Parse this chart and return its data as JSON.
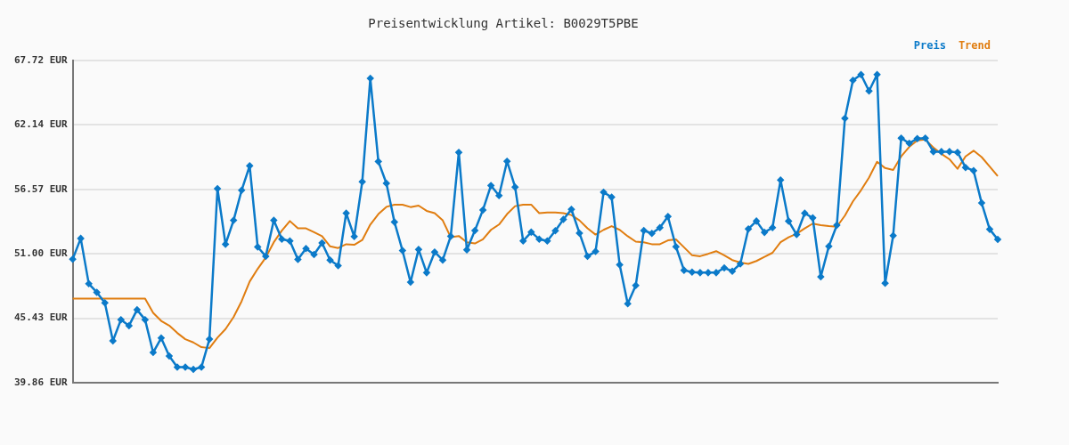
{
  "chart_data": {
    "type": "line",
    "title": "Preisentwicklung Artikel: B0029T5PBE",
    "categories": [
      null,
      null,
      null,
      null,
      null,
      null,
      null,
      null,
      null,
      null,
      null,
      null,
      null,
      null,
      null,
      null,
      null,
      null,
      null,
      null,
      null,
      null,
      null,
      null,
      null,
      null,
      null,
      null,
      null,
      null,
      null,
      null,
      null,
      null,
      null,
      null,
      null,
      null,
      null,
      null,
      null,
      null,
      null,
      null,
      null,
      null,
      null,
      null,
      null,
      null,
      null,
      null,
      null,
      null,
      null,
      null,
      null,
      null,
      null,
      null,
      null,
      null,
      null,
      null,
      null,
      null,
      null,
      null,
      null,
      null,
      null,
      null,
      null,
      null,
      null,
      null,
      null,
      null,
      null,
      null,
      null,
      null,
      null,
      null,
      null,
      null,
      null,
      null,
      null,
      null,
      null,
      null,
      null,
      null,
      null,
      null,
      null,
      null,
      null,
      null,
      null,
      null,
      null,
      null,
      null,
      null,
      null,
      null,
      null,
      null,
      null,
      null,
      null,
      null,
      null,
      null
    ],
    "series": [
      {
        "name": "Preis",
        "color": "#0b7ac9",
        "marker": "diamond",
        "values": [
          50.54,
          52.33,
          48.41,
          47.67,
          46.76,
          43.48,
          45.31,
          44.79,
          46.16,
          45.31,
          42.47,
          43.72,
          42.16,
          41.2,
          41.2,
          41.01,
          41.2,
          43.62,
          56.63,
          51.83,
          53.89,
          56.49,
          58.6,
          51.59,
          50.79,
          53.89,
          52.27,
          52.11,
          50.52,
          51.45,
          50.93,
          51.94,
          50.46,
          49.97,
          54.51,
          52.49,
          57.23,
          66.16,
          58.98,
          57.09,
          53.75,
          51.28,
          48.55,
          51.37,
          49.37,
          51.15,
          50.46,
          52.52,
          59.77,
          51.34,
          53.01,
          54.79,
          56.9,
          56.03,
          59.0,
          56.77,
          52.11,
          52.87,
          52.27,
          52.11,
          52.99,
          53.97,
          54.84,
          52.79,
          50.79,
          51.2,
          56.32,
          55.89,
          50.06,
          46.68,
          48.27,
          53.01,
          52.76,
          53.26,
          54.22,
          51.61,
          49.58,
          49.42,
          49.37,
          49.37,
          49.37,
          49.78,
          49.5,
          50.13,
          53.15,
          53.83,
          52.85,
          53.26,
          57.37,
          53.83,
          52.66,
          54.51,
          54.1,
          49.01,
          51.64,
          53.48,
          62.71,
          65.99,
          66.49,
          65.07,
          66.49,
          48.46,
          52.57,
          61.0,
          60.55,
          60.96,
          61.0,
          59.83,
          59.83,
          59.83,
          59.77,
          58.46,
          58.19,
          55.39,
          53.12,
          52.25
        ]
      },
      {
        "name": "Trend",
        "color": "#e07d10",
        "marker": "none",
        "values": [
          47.12,
          47.12,
          47.12,
          47.12,
          47.12,
          47.12,
          47.12,
          47.12,
          47.12,
          47.12,
          45.9,
          45.2,
          44.8,
          44.16,
          43.62,
          43.34,
          42.93,
          42.85,
          43.75,
          44.49,
          45.53,
          46.9,
          48.6,
          49.7,
          50.68,
          52.0,
          53.0,
          53.83,
          53.2,
          53.2,
          52.87,
          52.52,
          51.64,
          51.5,
          51.83,
          51.78,
          52.19,
          53.53,
          54.43,
          55.06,
          55.25,
          55.25,
          55.04,
          55.17,
          54.71,
          54.51,
          53.89,
          52.43,
          52.54,
          52.0,
          51.89,
          52.25,
          53.07,
          53.53,
          54.43,
          55.12,
          55.25,
          55.25,
          54.51,
          54.57,
          54.57,
          54.51,
          54.35,
          53.89,
          53.2,
          52.66,
          53.07,
          53.39,
          53.07,
          52.52,
          52.05,
          52.0,
          51.83,
          51.83,
          52.16,
          52.25,
          51.56,
          50.87,
          50.79,
          51.0,
          51.23,
          50.87,
          50.46,
          50.24,
          50.13,
          50.38,
          50.73,
          51.09,
          52.0,
          52.43,
          52.74,
          53.2,
          53.61,
          53.48,
          53.39,
          53.34,
          54.3,
          55.53,
          56.49,
          57.59,
          58.95,
          58.41,
          58.25,
          59.42,
          60.24,
          60.8,
          60.87,
          60.19,
          59.64,
          59.17,
          58.35,
          59.42,
          59.91,
          59.36,
          58.54,
          57.72
        ]
      }
    ],
    "ylim": [
      39.86,
      67.72
    ],
    "yticks": [
      {
        "value": 39.86,
        "label": "39.86 EUR"
      },
      {
        "value": 45.43,
        "label": "45.43 EUR"
      },
      {
        "value": 51.0,
        "label": "51.00 EUR"
      },
      {
        "value": 56.57,
        "label": "56.57 EUR"
      },
      {
        "value": 62.14,
        "label": "62.14 EUR"
      },
      {
        "value": 67.72,
        "label": "67.72 EUR"
      }
    ],
    "grid": "y",
    "legend": "top right",
    "line_style": "solid",
    "tick_labels": "y"
  }
}
